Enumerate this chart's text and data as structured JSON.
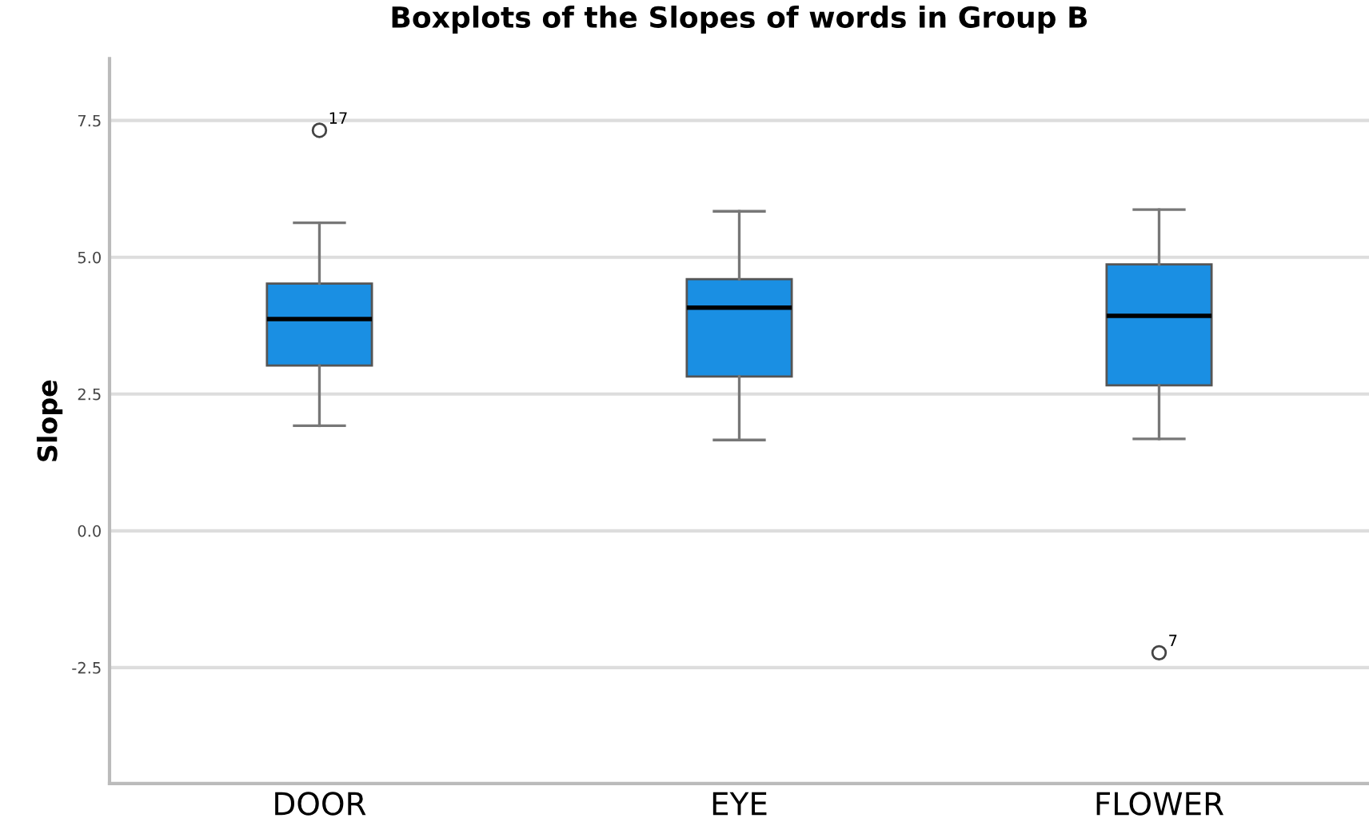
{
  "chart_data": {
    "type": "box",
    "title": "Boxplots of the Slopes of words in Group B",
    "ylabel": "Slope",
    "categories": [
      "DOOR",
      "EYE",
      "FLOWER"
    ],
    "boxes": [
      {
        "low": 1.92,
        "q1": 3.02,
        "median": 3.87,
        "q3": 4.52,
        "high": 5.63,
        "outliers": [
          7.32
        ]
      },
      {
        "low": 1.66,
        "q1": 2.82,
        "median": 4.08,
        "q3": 4.6,
        "high": 5.84
      },
      {
        "low": 1.68,
        "q1": 2.66,
        "median": 3.93,
        "q3": 4.87,
        "high": 5.87,
        "outliers": [
          -2.23
        ]
      }
    ],
    "color": "#1a8fe3",
    "ylim": [
      -4.62,
      8.63
    ],
    "yticks": [
      {
        "value": -2.5,
        "label": "-2.5"
      },
      {
        "value": 0,
        "label": "0.0"
      },
      {
        "value": 2.5,
        "label": "2.5"
      },
      {
        "value": 5,
        "label": "5.0"
      },
      {
        "value": 7.5,
        "label": "7.5"
      }
    ],
    "grid": "y",
    "annotations": [
      "17",
      "7"
    ]
  }
}
